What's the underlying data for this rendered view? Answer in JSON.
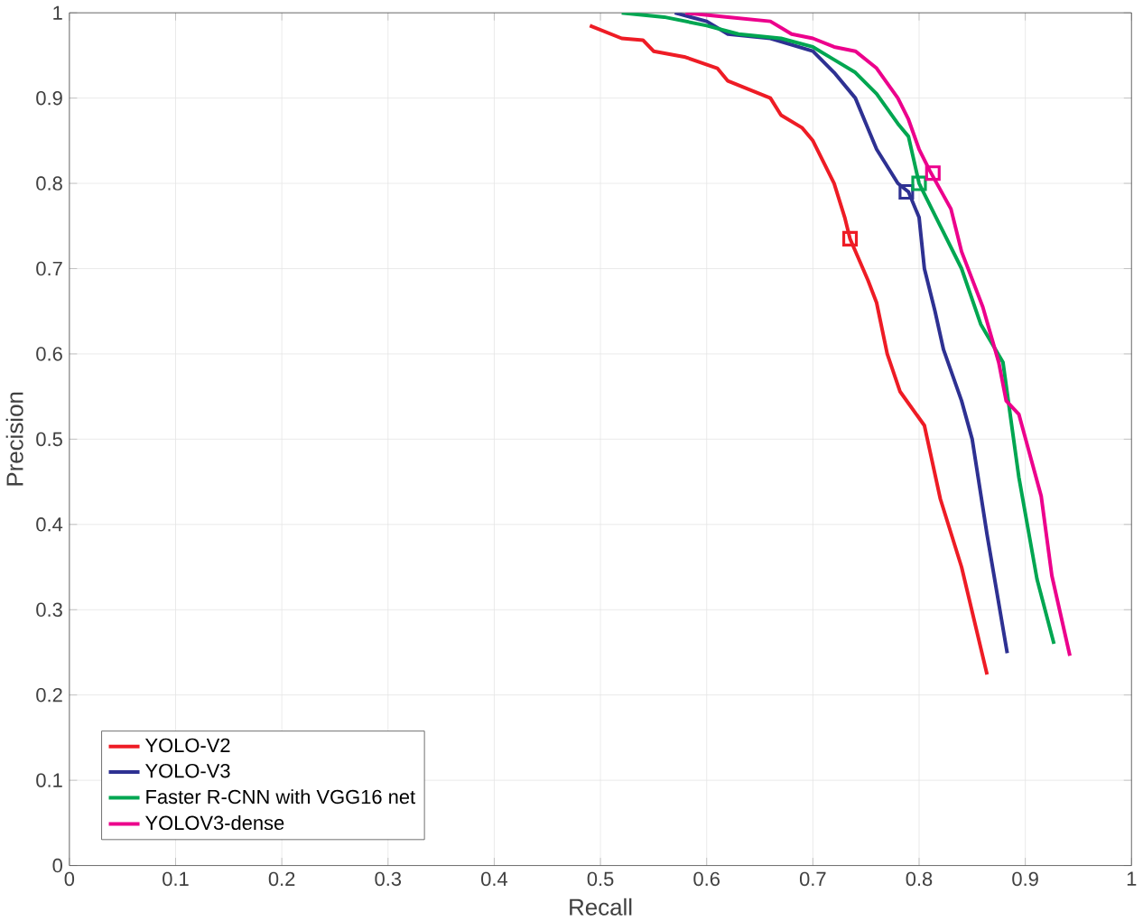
{
  "chart_data": {
    "type": "line",
    "xlabel": "Recall",
    "ylabel": "Precision",
    "xlim": [
      0,
      1
    ],
    "ylim": [
      0,
      1
    ],
    "xticks": [
      0,
      0.1,
      0.2,
      0.3,
      0.4,
      0.5,
      0.6,
      0.7,
      0.8,
      0.9,
      1
    ],
    "yticks": [
      0,
      0.1,
      0.2,
      0.3,
      0.4,
      0.5,
      0.6,
      0.7,
      0.8,
      0.9,
      1
    ],
    "grid": true,
    "legend": "bottom left",
    "line_style": "solid",
    "marker": "none",
    "series": [
      {
        "name": "YOLO-V2",
        "color": "#ee1c25",
        "x": [
          0.49,
          0.52,
          0.54,
          0.55,
          0.58,
          0.61,
          0.62,
          0.64,
          0.66,
          0.67,
          0.69,
          0.7,
          0.72,
          0.73,
          0.735,
          0.752,
          0.76,
          0.77,
          0.782,
          0.805,
          0.82,
          0.84,
          0.864
        ],
        "values": [
          0.985,
          0.97,
          0.968,
          0.955,
          0.948,
          0.935,
          0.92,
          0.91,
          0.9,
          0.88,
          0.865,
          0.85,
          0.8,
          0.76,
          0.735,
          0.686,
          0.66,
          0.6,
          0.556,
          0.516,
          0.43,
          0.35,
          0.224
        ]
      },
      {
        "name": "YOLO-V3",
        "color": "#2e3192",
        "x": [
          0.57,
          0.6,
          0.62,
          0.66,
          0.7,
          0.72,
          0.74,
          0.75,
          0.76,
          0.78,
          0.79,
          0.8,
          0.805,
          0.815,
          0.823,
          0.84,
          0.85,
          0.864,
          0.883
        ],
        "values": [
          1.0,
          0.99,
          0.975,
          0.97,
          0.955,
          0.93,
          0.9,
          0.87,
          0.84,
          0.8,
          0.79,
          0.76,
          0.7,
          0.65,
          0.605,
          0.545,
          0.5,
          0.388,
          0.249
        ]
      },
      {
        "name": "Faster R-CNN with VGG16 net",
        "color": "#00a651",
        "x": [
          0.52,
          0.56,
          0.6,
          0.63,
          0.67,
          0.7,
          0.72,
          0.74,
          0.76,
          0.78,
          0.79,
          0.8,
          0.82,
          0.84,
          0.858,
          0.879,
          0.894,
          0.911,
          0.927
        ],
        "values": [
          1.0,
          0.995,
          0.985,
          0.975,
          0.97,
          0.96,
          0.945,
          0.93,
          0.905,
          0.87,
          0.855,
          0.8,
          0.75,
          0.7,
          0.635,
          0.59,
          0.455,
          0.336,
          0.26
        ]
      },
      {
        "name": "YOLOV3-dense",
        "color": "#ec008c",
        "x": [
          0.58,
          0.62,
          0.66,
          0.68,
          0.7,
          0.72,
          0.74,
          0.76,
          0.78,
          0.79,
          0.8,
          0.81,
          0.83,
          0.84,
          0.86,
          0.875,
          0.882,
          0.894,
          0.915,
          0.925,
          0.942
        ],
        "values": [
          1.0,
          0.995,
          0.99,
          0.975,
          0.97,
          0.96,
          0.955,
          0.935,
          0.9,
          0.875,
          0.84,
          0.815,
          0.77,
          0.72,
          0.655,
          0.59,
          0.545,
          0.529,
          0.433,
          0.34,
          0.246
        ]
      },
      {
        "type": "scatter",
        "marker": "square",
        "color": "#ee1c25",
        "x": [
          0.735
        ],
        "values": [
          0.735
        ]
      },
      {
        "type": "scatter",
        "marker": "square",
        "color": "#2e3192",
        "x": [
          0.788
        ],
        "values": [
          0.79
        ]
      },
      {
        "type": "scatter",
        "marker": "square",
        "color": "#00a651",
        "x": [
          0.8
        ],
        "values": [
          0.8
        ]
      },
      {
        "type": "scatter",
        "marker": "square",
        "color": "#ec008c",
        "x": [
          0.813
        ],
        "values": [
          0.812
        ]
      }
    ]
  }
}
